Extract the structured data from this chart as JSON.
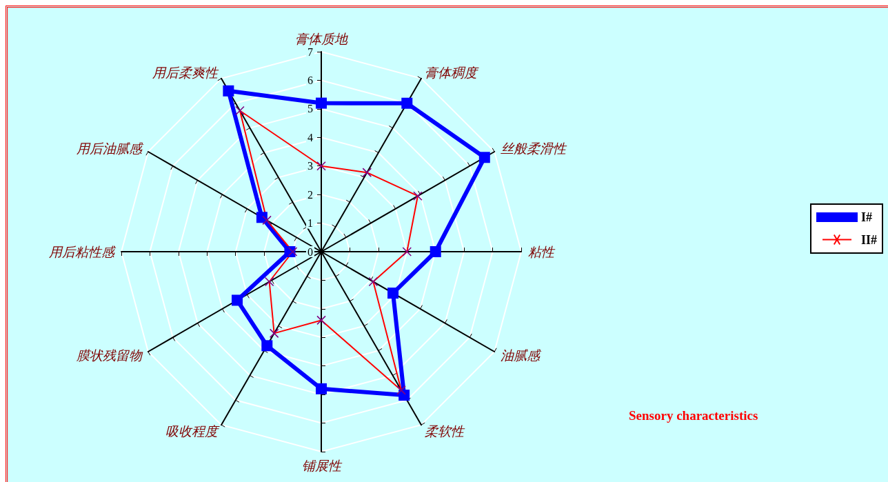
{
  "chart_data": {
    "type": "radar",
    "categories": [
      "膏体质地",
      "膏体稠度",
      "丝般柔滑性",
      "粘性",
      "油腻感",
      "柔软性",
      "铺展性",
      "吸收程度",
      "膜状残留物",
      "用后粘性感",
      "用后油腻感",
      "用后柔爽性"
    ],
    "series": [
      {
        "name": "I#",
        "color": "#0000ff",
        "marker": "square",
        "values": [
          5.2,
          6.0,
          6.6,
          4.0,
          2.9,
          5.8,
          4.8,
          3.8,
          3.4,
          1.1,
          2.4,
          6.5
        ]
      },
      {
        "name": "II#",
        "color": "#ff0000",
        "marker": "cross",
        "values": [
          3.0,
          3.2,
          3.9,
          3.0,
          2.1,
          5.6,
          2.4,
          3.3,
          2.1,
          1.0,
          2.2,
          5.7
        ]
      }
    ],
    "ylim": [
      0,
      7
    ],
    "yticks": [
      0,
      1,
      2,
      3,
      4,
      5,
      6,
      7
    ],
    "grid": true,
    "legend": "right",
    "annotations": [
      "Sensory characteristics"
    ]
  }
}
